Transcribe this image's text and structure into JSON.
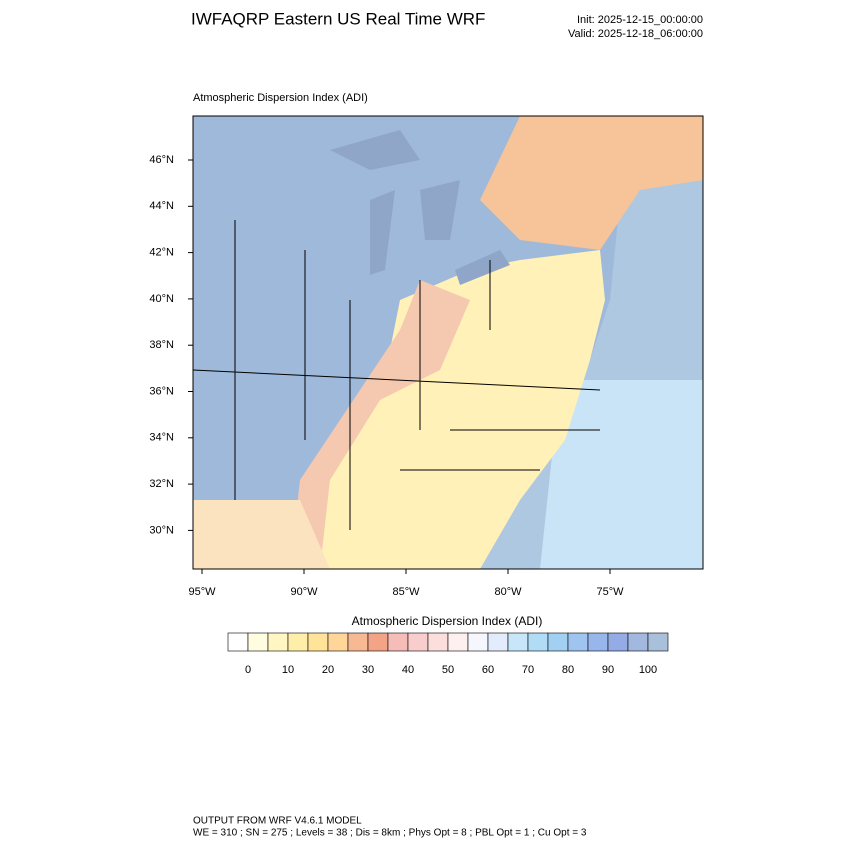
{
  "header": {
    "title": "IWFAQRP Eastern US Real Time WRF",
    "init": "Init: 2025-12-15_00:00:00",
    "valid": "Valid: 2025-12-18_06:00:00"
  },
  "map": {
    "title": "Atmospheric Dispersion Index   (ADI)",
    "lat_labels": [
      "46°N",
      "44°N",
      "42°N",
      "40°N",
      "38°N",
      "36°N",
      "34°N",
      "32°N",
      "30°N"
    ],
    "lon_labels": [
      "95°W",
      "90°W",
      "85°W",
      "80°W",
      "75°W"
    ]
  },
  "colorbar": {
    "title": "Atmospheric Dispersion Index  (ADI)",
    "colors": [
      "#ffffff",
      "#fffde0",
      "#fff6c4",
      "#ffeeaa",
      "#ffe398",
      "#ffd59a",
      "#f7b994",
      "#f4a486",
      "#f6bcb8",
      "#f9cdcb",
      "#fcdedd",
      "#fff0f0",
      "#f6f6ff",
      "#e2ecfc",
      "#c8e6fa",
      "#b0dcf6",
      "#a2d0f2",
      "#a0c4f0",
      "#98b6ec",
      "#94abe6",
      "#a2b8de",
      "#a9c0da"
    ],
    "ticks": [
      "0",
      "10",
      "20",
      "30",
      "40",
      "50",
      "60",
      "70",
      "80",
      "90",
      "100"
    ]
  },
  "footer": {
    "line1": "OUTPUT FROM WRF V4.6.1 MODEL",
    "line2": "WE = 310 ; SN = 275 ; Levels = 38 ; Dis = 8km ; Phys Opt = 8 ; PBL Opt = 1 ; Cu Opt = 3"
  }
}
